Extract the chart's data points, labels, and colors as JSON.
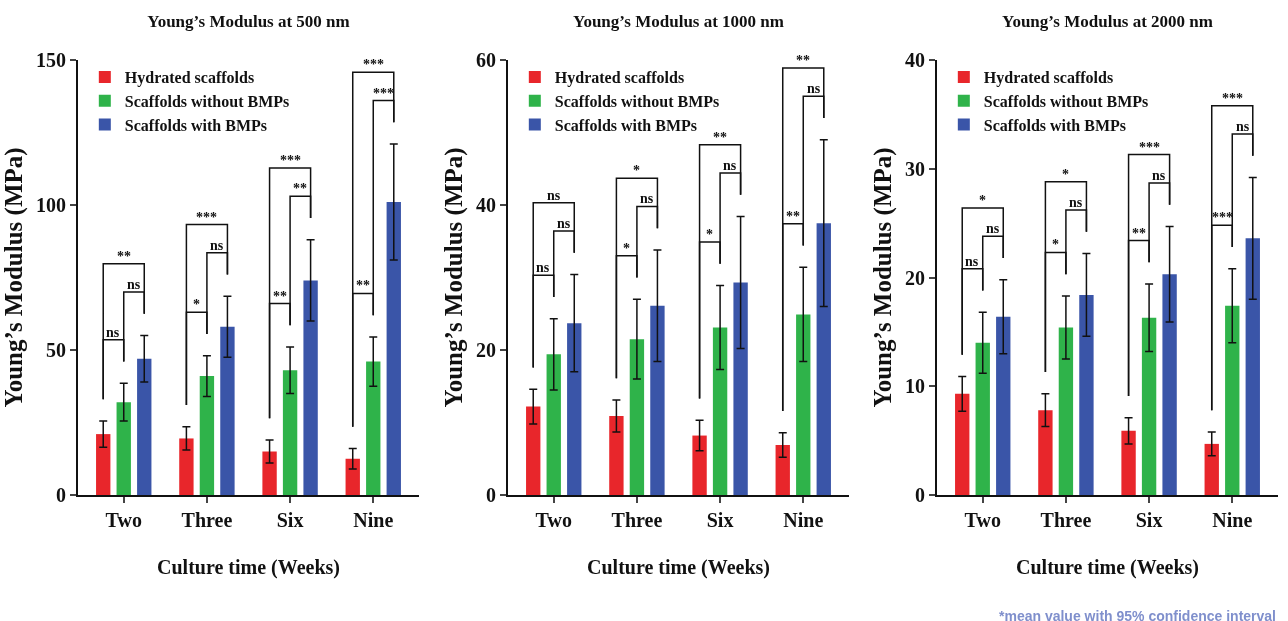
{
  "chart_data": [
    {
      "type": "bar",
      "title": "Young’s Modulus at 500 nm",
      "xlabel": "Culture time (Weeks)",
      "ylabel": "Young’s Modulus (MPa)",
      "categories": [
        "Two",
        "Three",
        "Six",
        "Nine"
      ],
      "ylim": [
        0,
        150
      ],
      "yticks": [
        0,
        50,
        100,
        150
      ],
      "legend": "top left",
      "series": [
        {
          "name": "Hydrated scaffolds",
          "color": "#e8262b",
          "values": [
            21,
            19.5,
            15,
            12.5
          ],
          "errors": [
            4.5,
            4,
            4,
            3.5
          ]
        },
        {
          "name": "Scaffolds without BMPs",
          "color": "#2fb34a",
          "values": [
            32,
            41,
            43,
            46
          ],
          "errors": [
            6.5,
            7,
            8,
            8.5
          ]
        },
        {
          "name": "Scaffolds with BMPs",
          "color": "#3a55a8",
          "values": [
            47,
            58,
            74,
            101
          ],
          "errors": [
            8,
            10.5,
            14,
            20
          ]
        }
      ],
      "annotations": [
        "ns",
        "ns",
        "**",
        "*",
        "ns",
        "***",
        "**",
        "**",
        "***",
        "**",
        "***",
        "***"
      ]
    },
    {
      "type": "bar",
      "title": "Young’s Modulus at 1000 nm",
      "xlabel": "Culture time (Weeks)",
      "ylabel": "Young’s Modulus (MPa)",
      "categories": [
        "Two",
        "Three",
        "Six",
        "Nine"
      ],
      "ylim": [
        0,
        60
      ],
      "yticks": [
        0,
        20,
        40,
        60
      ],
      "legend": "top left",
      "series": [
        {
          "name": "Hydrated scaffolds",
          "color": "#e8262b",
          "values": [
            12.2,
            10.9,
            8.2,
            6.9
          ],
          "errors": [
            2.4,
            2.2,
            2.1,
            1.7
          ]
        },
        {
          "name": "Scaffolds without BMPs",
          "color": "#2fb34a",
          "values": [
            19.4,
            21.5,
            23.1,
            24.9
          ],
          "errors": [
            4.9,
            5.5,
            5.8,
            6.5
          ]
        },
        {
          "name": "Scaffolds with BMPs",
          "color": "#3a55a8",
          "values": [
            23.7,
            26.1,
            29.3,
            37.5
          ],
          "errors": [
            6.7,
            7.7,
            9.1,
            11.5
          ]
        }
      ],
      "annotations": [
        "ns",
        "ns",
        "ns",
        "*",
        "ns",
        "*",
        "*",
        "ns",
        "**",
        "**",
        "ns",
        "**"
      ]
    },
    {
      "type": "bar",
      "title": "Young’s Modulus at 2000 nm",
      "xlabel": "Culture time (Weeks)",
      "ylabel": "Young’s Modulus (MPa)",
      "categories": [
        "Two",
        "Three",
        "Six",
        "Nine"
      ],
      "ylim": [
        0,
        40
      ],
      "yticks": [
        0,
        10,
        20,
        30,
        40
      ],
      "legend": "top left",
      "series": [
        {
          "name": "Hydrated scaffolds",
          "color": "#e8262b",
          "values": [
            9.3,
            7.8,
            5.9,
            4.7
          ],
          "errors": [
            1.6,
            1.5,
            1.2,
            1.1
          ]
        },
        {
          "name": "Scaffolds without BMPs",
          "color": "#2fb34a",
          "values": [
            14,
            15.4,
            16.3,
            17.4
          ],
          "errors": [
            2.8,
            2.9,
            3.1,
            3.4
          ]
        },
        {
          "name": "Scaffolds with BMPs",
          "color": "#3a55a8",
          "values": [
            16.4,
            18.4,
            20.3,
            23.6
          ],
          "errors": [
            3.4,
            3.8,
            4.4,
            5.6
          ]
        }
      ],
      "annotations": [
        "ns",
        "ns",
        "*",
        "*",
        "ns",
        "*",
        "**",
        "ns",
        "***",
        "***",
        "ns",
        "***",
        "*mean value with 95% confidence interval"
      ]
    }
  ]
}
